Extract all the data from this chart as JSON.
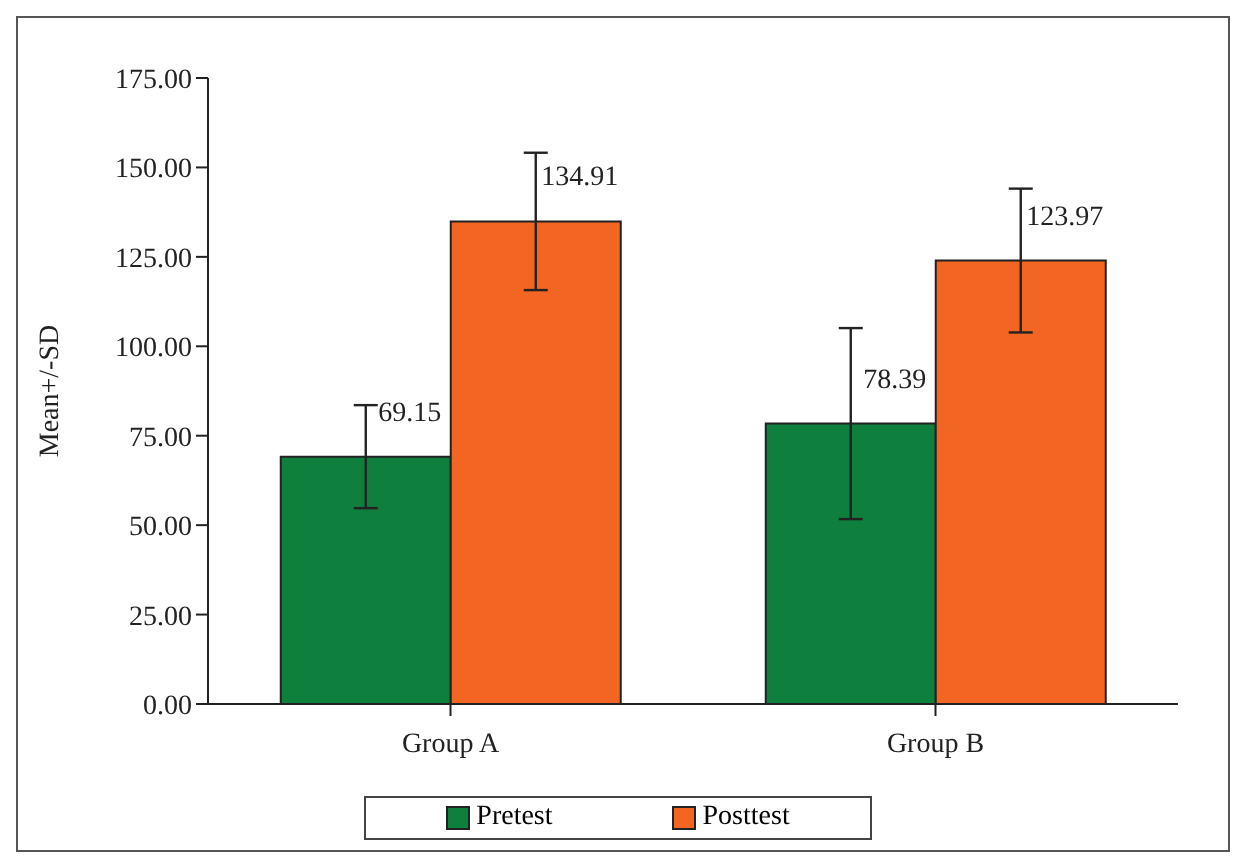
{
  "chart_data": {
    "type": "bar",
    "ylabel": "Mean+/-SD",
    "categories": [
      "Group A",
      "Group B"
    ],
    "series": [
      {
        "name": "Pretest",
        "color": "#0e7f3d",
        "values": [
          69.15,
          78.39
        ],
        "errors": [
          14.4,
          26.7
        ]
      },
      {
        "name": "Posttest",
        "color": "#f26522",
        "values": [
          134.91,
          123.97
        ],
        "errors": [
          19.2,
          20.1
        ]
      }
    ],
    "ylim": [
      0,
      175
    ],
    "yticks": [
      {
        "value": 0,
        "label": "0.00"
      },
      {
        "value": 25,
        "label": "25.00"
      },
      {
        "value": 50,
        "label": "50.00"
      },
      {
        "value": 75,
        "label": "75.00"
      },
      {
        "value": 100,
        "label": "100.00"
      },
      {
        "value": 125,
        "label": "125.00"
      },
      {
        "value": 150,
        "label": "150.00"
      },
      {
        "value": 175,
        "label": "175.00"
      }
    ],
    "data_labels": true,
    "grid": false,
    "legend": "bottom"
  }
}
